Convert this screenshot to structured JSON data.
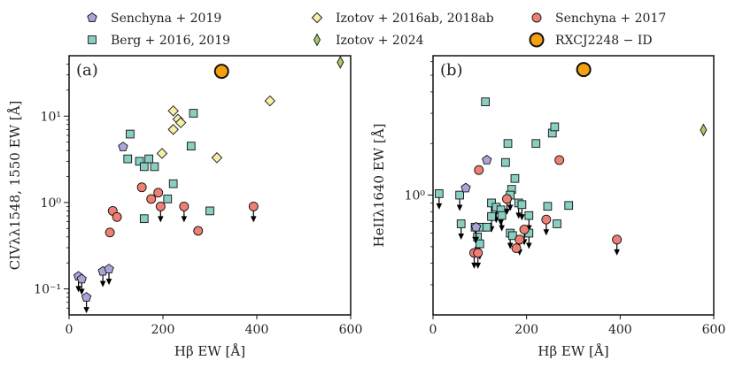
{
  "legend": [
    {
      "key": "senchyna2019",
      "label": "Senchyna + 2019",
      "marker": "pentagon",
      "color": "#a8a6d6"
    },
    {
      "key": "izotov2016",
      "label": "Izotov + 2016ab, 2018ab",
      "marker": "diamond",
      "color": "#f4f0a6"
    },
    {
      "key": "senchyna2017",
      "label": "Senchyna + 2017",
      "marker": "circle",
      "color": "#ee7f73"
    },
    {
      "key": "berg",
      "label": "Berg + 2016, 2019",
      "marker": "square",
      "color": "#88cfc2"
    },
    {
      "key": "izotov2024",
      "label": "Izotov + 2024",
      "marker": "thin-diamond",
      "color": "#a8c964"
    },
    {
      "key": "rxcj",
      "label": "RXCJ2248 − ID",
      "marker": "big-circle",
      "color": "#f4a011"
    }
  ],
  "chart_data": [
    {
      "type": "scatter",
      "panel_label": "(a)",
      "xlabel": "Hβ EW [Å]",
      "ylabel": "CIVλλ1548, 1550 EW [Å]",
      "xlim": [
        0,
        600
      ],
      "ylim": [
        0.05,
        50
      ],
      "yscale": "log",
      "xticks": [
        0,
        200,
        400,
        600
      ],
      "yticks": [
        {
          "v": 0.1,
          "label": "10⁻¹"
        },
        {
          "v": 1,
          "label": "10⁰"
        },
        {
          "v": 10,
          "label": "10¹"
        }
      ],
      "series": [
        {
          "key": "berg",
          "points": [
            {
              "x": 130,
              "y": 6.2
            },
            {
              "x": 125,
              "y": 3.2
            },
            {
              "x": 150,
              "y": 3.0
            },
            {
              "x": 160,
              "y": 2.6
            },
            {
              "x": 170,
              "y": 3.2
            },
            {
              "x": 182,
              "y": 2.6
            },
            {
              "x": 265,
              "y": 10.8
            },
            {
              "x": 260,
              "y": 4.5
            },
            {
              "x": 210,
              "y": 1.1
            },
            {
              "x": 222,
              "y": 1.65
            },
            {
              "x": 160,
              "y": 0.65
            },
            {
              "x": 300,
              "y": 0.8
            }
          ]
        },
        {
          "key": "senchyna2019",
          "points": [
            {
              "x": 115,
              "y": 4.4
            },
            {
              "x": 20,
              "y": 0.14,
              "limit": true
            },
            {
              "x": 27,
              "y": 0.13,
              "limit": true
            },
            {
              "x": 37,
              "y": 0.08,
              "limit": true
            },
            {
              "x": 72,
              "y": 0.16,
              "limit": true
            },
            {
              "x": 85,
              "y": 0.17,
              "limit": true
            }
          ]
        },
        {
          "key": "izotov2016",
          "points": [
            {
              "x": 198,
              "y": 3.7
            },
            {
              "x": 222,
              "y": 11.5
            },
            {
              "x": 232,
              "y": 9.2
            },
            {
              "x": 222,
              "y": 7.0
            },
            {
              "x": 238,
              "y": 8.4
            },
            {
              "x": 315,
              "y": 3.3
            },
            {
              "x": 428,
              "y": 15.0
            }
          ]
        },
        {
          "key": "senchyna2017",
          "points": [
            {
              "x": 155,
              "y": 1.5
            },
            {
              "x": 175,
              "y": 1.1
            },
            {
              "x": 190,
              "y": 1.3
            },
            {
              "x": 195,
              "y": 0.9,
              "limit": true
            },
            {
              "x": 93,
              "y": 0.8
            },
            {
              "x": 102,
              "y": 0.68
            },
            {
              "x": 87,
              "y": 0.45
            },
            {
              "x": 245,
              "y": 0.9,
              "limit": true
            },
            {
              "x": 275,
              "y": 0.47
            },
            {
              "x": 393,
              "y": 0.9,
              "limit": true
            }
          ]
        },
        {
          "key": "izotov2024",
          "points": [
            {
              "x": 578,
              "y": 42
            }
          ]
        },
        {
          "key": "rxcj",
          "points": [
            {
              "x": 325,
              "y": 33
            }
          ]
        }
      ]
    },
    {
      "type": "scatter",
      "panel_label": "(b)",
      "xlabel": "Hβ EW [Å]",
      "ylabel": "HeIIλ1640 EW [Å]",
      "xlim": [
        0,
        600
      ],
      "ylim": [
        0.2,
        6.5
      ],
      "yscale": "log",
      "xticks": [
        0,
        200,
        400,
        600
      ],
      "yticks": [
        {
          "v": 1,
          "label": "10⁰"
        }
      ],
      "series": [
        {
          "key": "berg",
          "points": [
            {
              "x": 112,
              "y": 3.5
            },
            {
              "x": 160,
              "y": 2.0
            },
            {
              "x": 220,
              "y": 2.0
            },
            {
              "x": 255,
              "y": 2.3
            },
            {
              "x": 260,
              "y": 2.5
            },
            {
              "x": 155,
              "y": 1.55
            },
            {
              "x": 175,
              "y": 1.25
            },
            {
              "x": 168,
              "y": 1.08
            },
            {
              "x": 165,
              "y": 1.0,
              "limit": true
            },
            {
              "x": 13,
              "y": 1.02,
              "limit": true
            },
            {
              "x": 57,
              "y": 1.0,
              "limit": true
            },
            {
              "x": 125,
              "y": 0.9,
              "limit": true
            },
            {
              "x": 135,
              "y": 0.85,
              "limit": true
            },
            {
              "x": 145,
              "y": 0.82,
              "limit": true
            },
            {
              "x": 183,
              "y": 0.9,
              "limit": true
            },
            {
              "x": 190,
              "y": 0.88,
              "limit": true
            },
            {
              "x": 245,
              "y": 0.86
            },
            {
              "x": 290,
              "y": 0.87
            },
            {
              "x": 125,
              "y": 0.75,
              "limit": true
            },
            {
              "x": 147,
              "y": 0.76,
              "limit": true
            },
            {
              "x": 205,
              "y": 0.76,
              "limit": true
            },
            {
              "x": 60,
              "y": 0.68,
              "limit": true
            },
            {
              "x": 90,
              "y": 0.65,
              "limit": true
            },
            {
              "x": 105,
              "y": 0.65
            },
            {
              "x": 115,
              "y": 0.65
            },
            {
              "x": 165,
              "y": 0.6,
              "limit": true
            },
            {
              "x": 170,
              "y": 0.58
            },
            {
              "x": 205,
              "y": 0.6,
              "limit": true
            },
            {
              "x": 265,
              "y": 0.68
            },
            {
              "x": 95,
              "y": 0.57,
              "limit": true
            },
            {
              "x": 100,
              "y": 0.52,
              "limit": true
            }
          ]
        },
        {
          "key": "senchyna2019",
          "points": [
            {
              "x": 70,
              "y": 1.1
            },
            {
              "x": 115,
              "y": 1.6
            },
            {
              "x": 92,
              "y": 0.65,
              "limit": true
            }
          ]
        },
        {
          "key": "senchyna2017",
          "points": [
            {
              "x": 98,
              "y": 1.4
            },
            {
              "x": 158,
              "y": 0.95,
              "limit": true
            },
            {
              "x": 270,
              "y": 1.6
            },
            {
              "x": 242,
              "y": 0.72,
              "limit": true
            },
            {
              "x": 195,
              "y": 0.63,
              "limit": true
            },
            {
              "x": 185,
              "y": 0.55,
              "limit": true
            },
            {
              "x": 178,
              "y": 0.49
            },
            {
              "x": 88,
              "y": 0.46,
              "limit": true
            },
            {
              "x": 96,
              "y": 0.46,
              "limit": true
            },
            {
              "x": 393,
              "y": 0.55,
              "limit": true
            }
          ]
        },
        {
          "key": "izotov2024",
          "points": [
            {
              "x": 578,
              "y": 2.4
            }
          ]
        },
        {
          "key": "rxcj",
          "points": [
            {
              "x": 322,
              "y": 5.4
            }
          ]
        }
      ]
    }
  ]
}
